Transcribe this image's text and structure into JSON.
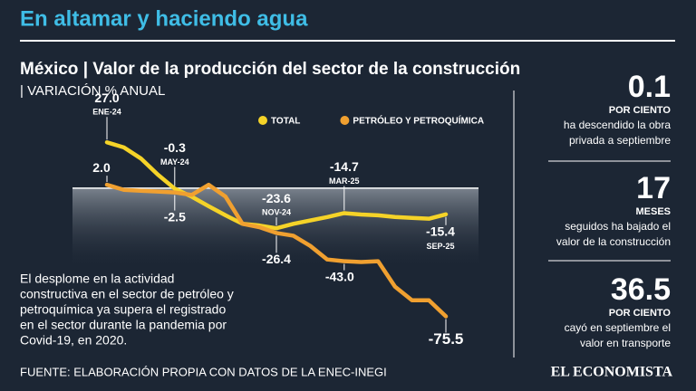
{
  "banner": "En altamar y haciendo agua",
  "chart_data": {
    "type": "line",
    "title": "México | Valor de la producción del sector de la construcción",
    "subtitle": "| VARIACIÓN % ANUAL",
    "categories": [
      "ENE-24",
      null,
      null,
      null,
      "MAY-24",
      null,
      null,
      null,
      null,
      null,
      "NOV-24",
      null,
      null,
      null,
      "MAR-25",
      null,
      null,
      null,
      null,
      null,
      "SEP-25"
    ],
    "series": [
      {
        "name": "TOTAL",
        "color": "#f5d328",
        "values": [
          27.0,
          24,
          17.5,
          8,
          -0.3,
          -5,
          -10.6,
          -16,
          -21,
          -22,
          -23.6,
          -21,
          -19,
          -17,
          -14.7,
          -15.5,
          -16,
          -17,
          -17.5,
          -18,
          -15.4
        ],
        "value_labels": [
          "27.0",
          null,
          null,
          null,
          "-0.3",
          null,
          null,
          null,
          null,
          null,
          "-23.6",
          null,
          null,
          null,
          "-14.7",
          null,
          null,
          null,
          null,
          null,
          "-15.4"
        ]
      },
      {
        "name": "PETRÓLEO Y PETROQUÍMICA",
        "color": "#f0a030",
        "values": [
          2.0,
          -1,
          -1.5,
          -2,
          -2.5,
          -4,
          2,
          -5,
          -21,
          -23,
          -26.4,
          -28,
          -34,
          -42,
          -43.0,
          -43.5,
          -43,
          -58,
          -66,
          -66,
          -75.5
        ],
        "value_labels": [
          "2.0",
          null,
          null,
          null,
          "-2.5",
          null,
          null,
          null,
          null,
          null,
          "-26.4",
          null,
          null,
          null,
          "-43.0",
          null,
          null,
          null,
          null,
          null,
          "-75.5"
        ]
      }
    ],
    "ylim": [
      -80,
      30
    ]
  },
  "annotation": [
    "El desplome en la actividad",
    "constructiva en el sector de petróleo y",
    "petroquímica ya supera el registrado",
    "en el sector durante la pandemia por",
    "Covid-19, en 2020."
  ],
  "stats": [
    {
      "number": "0.1",
      "unit": "POR CIENTO",
      "text": [
        "ha descendido la obra",
        "privada a septiembre"
      ]
    },
    {
      "number": "17",
      "unit": "MESES",
      "text": [
        "seguidos ha bajado el",
        "valor de la construcción"
      ]
    },
    {
      "number": "36.5",
      "unit": "POR CIENTO",
      "text": [
        "cayó en septiembre el",
        "valor en transporte"
      ]
    }
  ],
  "source": "FUENTE: ELABORACIÓN PROPIA CON DATOS DE LA ENEC-INEGI",
  "brand": "EL ECONOMISTA"
}
